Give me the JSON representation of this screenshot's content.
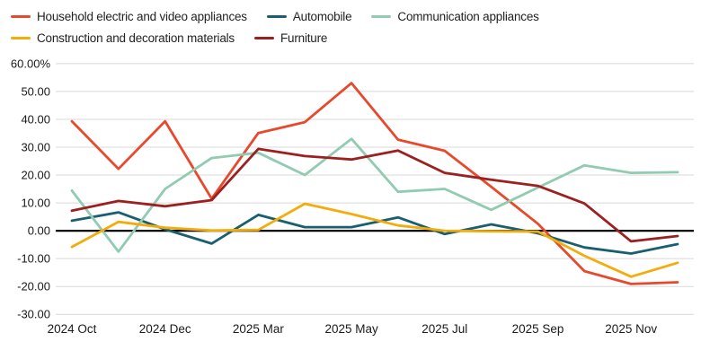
{
  "legend": {
    "items": [
      {
        "label": "Household electric and video appliances",
        "color": "#e8492c"
      },
      {
        "label": "Automobile",
        "color": "#1a5f70"
      },
      {
        "label": "Communication appliances",
        "color": "#91cbb1"
      },
      {
        "label": "Construction and decoration materials",
        "color": "#f3ac0b"
      },
      {
        "label": "Furniture",
        "color": "#9c2020"
      }
    ]
  },
  "chart_data": {
    "type": "line",
    "title": "",
    "xlabel": "",
    "ylabel": "",
    "x_point_count": 14,
    "x_tick_labels": [
      "2024 Oct",
      "2024 Dec",
      "2025 Mar",
      "2025 May",
      "2025 Jul",
      "2025 Sep",
      "2025 Nov"
    ],
    "x_tick_indices": [
      0,
      2,
      4,
      6,
      8,
      10,
      12
    ],
    "y_tick_labels": [
      "60.00%",
      "50.00",
      "40.00",
      "30.00",
      "20.00",
      "10.00",
      "0.00",
      "-10.00",
      "-20.00",
      "-30.00"
    ],
    "y_tick_values": [
      60,
      50,
      40,
      30,
      20,
      10,
      0,
      -10,
      -20,
      -30
    ],
    "ylim": [
      -30,
      60
    ],
    "grid": "horizontal-only",
    "zero_line": true,
    "zero_line_color": "#000000",
    "grid_color": "#d9d9d9",
    "legend_position": "top-left",
    "series": [
      {
        "name": "Household electric and video appliances",
        "color": "#e8492c",
        "values": [
          39.3,
          22.2,
          39.3,
          11.5,
          35.1,
          39.0,
          53.0,
          32.7,
          28.7,
          15.8,
          2.5,
          -14.5,
          -19.1,
          -18.5
        ]
      },
      {
        "name": "Automobile",
        "color": "#1a5f70",
        "values": [
          3.6,
          6.6,
          0.5,
          -4.6,
          5.7,
          1.3,
          1.3,
          4.8,
          -1.2,
          2.3,
          -0.9,
          -6.0,
          -8.2,
          -4.8
        ]
      },
      {
        "name": "Communication appliances",
        "color": "#91cbb1",
        "values": [
          14.4,
          -7.5,
          15.0,
          26.1,
          28.0,
          20.0,
          33.0,
          14.0,
          15.0,
          7.5,
          15.5,
          23.5,
          20.8,
          21.0
        ]
      },
      {
        "name": "Construction and decoration materials",
        "color": "#f3ac0b",
        "values": [
          -5.8,
          3.2,
          1.1,
          0.1,
          0.3,
          9.7,
          6.0,
          1.9,
          0.0,
          -0.2,
          -0.3,
          -9.0,
          -16.5,
          -11.5
        ]
      },
      {
        "name": "Furniture",
        "color": "#9c2020",
        "values": [
          7.2,
          10.7,
          8.8,
          11.0,
          29.4,
          26.8,
          25.6,
          28.8,
          20.8,
          18.3,
          16.1,
          9.8,
          -3.8,
          -1.9
        ]
      }
    ]
  }
}
